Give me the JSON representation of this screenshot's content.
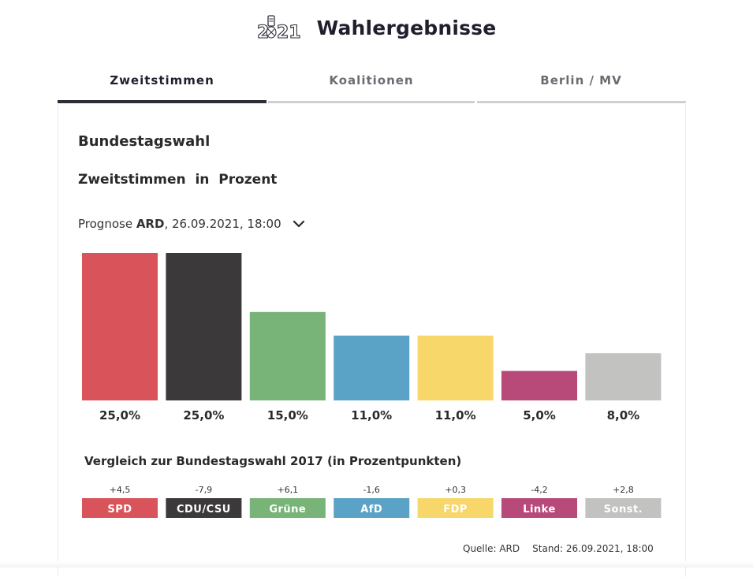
{
  "header": {
    "logo_text": "2021",
    "title": "Wahlergebnisse"
  },
  "tabs": [
    {
      "label": "Zweitstimmen",
      "active": true
    },
    {
      "label": "Koalitionen",
      "active": false
    },
    {
      "label": "Berlin / MV",
      "active": false
    }
  ],
  "section": {
    "heading": "Bundestagswahl",
    "subheading": "Zweitstimmen  in  Prozent"
  },
  "prognose": {
    "prefix": "Prognose ",
    "source": "ARD",
    "suffix": ", 26.09.2021, 18:00",
    "chevron_icon": "chevron-down-icon"
  },
  "colors": {
    "SPD": "#d9545a",
    "CDU/CSU": "#3c393b",
    "Grüne": "#78b478",
    "AfD": "#5ba3c6",
    "FDP": "#f7d66a",
    "Linke": "#b84a7a",
    "Sonst.": "#c2c2c0"
  },
  "chart_data": [
    {
      "type": "bar",
      "title": "Zweitstimmen  in  Prozent",
      "categories": [
        "SPD",
        "CDU/CSU",
        "Grüne",
        "AfD",
        "FDP",
        "Linke",
        "Sonst."
      ],
      "values": [
        25.0,
        25.0,
        15.0,
        11.0,
        11.0,
        5.0,
        8.0
      ],
      "value_labels": [
        "25,0%",
        "25,0%",
        "15,0%",
        "11,0%",
        "11,0%",
        "5,0%",
        "8,0%"
      ],
      "ylim": [
        0,
        25
      ],
      "grid": false,
      "xlabel": "",
      "ylabel": ""
    },
    {
      "type": "table",
      "title": "Vergleich zur Bundestagswahl 2017 (in Prozentpunkten)",
      "categories": [
        "SPD",
        "CDU/CSU",
        "Grüne",
        "AfD",
        "FDP",
        "Linke",
        "Sonst."
      ],
      "values": [
        4.5,
        -7.9,
        6.1,
        -1.6,
        0.3,
        -4.2,
        2.8
      ],
      "value_labels": [
        "+4,5",
        "-7,9",
        "+6,1",
        "-1,6",
        "+0,3",
        "-4,2",
        "+2,8"
      ]
    }
  ],
  "footer": {
    "source": "Quelle: ARD",
    "stand": "Stand: 26.09.2021, 18:00"
  }
}
